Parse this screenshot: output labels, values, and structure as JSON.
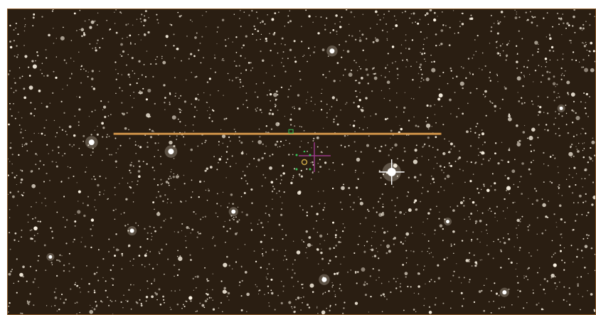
{
  "viewer": {
    "frame_color": "#8a5a2a",
    "sky_color": "#2a1e12",
    "star_color": "#fff7e8",
    "slit_color": "#d4964a",
    "marker_colors": {
      "crosshair": "#9a3a8a",
      "target_dots": "#34c759",
      "target_ring": "#c9a646"
    }
  }
}
